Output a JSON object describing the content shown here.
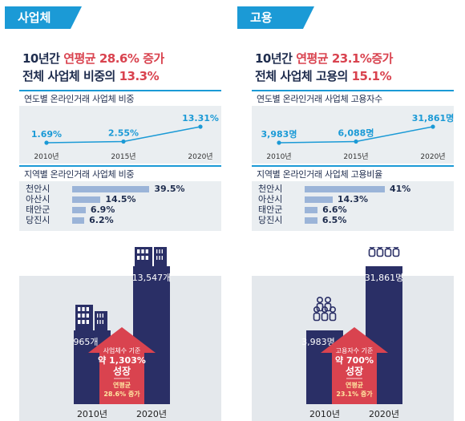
{
  "chart_data": [
    {
      "type": "line",
      "title": "연도별 온라인거래 사업체 비중",
      "categories": [
        "2010년",
        "2015년",
        "2020년"
      ],
      "values": [
        1.69,
        2.55,
        13.31
      ],
      "value_labels": [
        "1.69%",
        "2.55%",
        "13.31%"
      ],
      "color": "#1b9ad6"
    },
    {
      "type": "bar",
      "orientation": "horizontal",
      "title": "지역별 온라인거래 사업체 비중",
      "categories": [
        "천안시",
        "아산시",
        "태안군",
        "당진시"
      ],
      "values": [
        39.5,
        14.5,
        6.9,
        6.2
      ],
      "value_labels": [
        "39.5%",
        "14.5%",
        "6.9%",
        "6.2%"
      ],
      "color": "#9bb4d8"
    },
    {
      "type": "bar",
      "categories": [
        "2010년",
        "2020년"
      ],
      "values": [
        965,
        13547
      ],
      "value_labels": [
        "965개",
        "13,547개"
      ],
      "color": "#2a2f66"
    },
    {
      "type": "line",
      "title": "연도별 온라인거래 사업체 고용자수",
      "categories": [
        "2010년",
        "2015년",
        "2020년"
      ],
      "values": [
        3983,
        6088,
        31861
      ],
      "value_labels": [
        "3,983명",
        "6,088명",
        "31,861명"
      ],
      "color": "#1b9ad6"
    },
    {
      "type": "bar",
      "orientation": "horizontal",
      "title": "지역별 온라인거래 사업체 고용비율",
      "categories": [
        "천안시",
        "아산시",
        "태안군",
        "당진시"
      ],
      "values": [
        41,
        14.3,
        6.6,
        6.5
      ],
      "value_labels": [
        "41%",
        "14.3%",
        "6.6%",
        "6.5%"
      ],
      "color": "#9bb4d8"
    },
    {
      "type": "bar",
      "categories": [
        "2010년",
        "2020년"
      ],
      "values": [
        3983,
        31861
      ],
      "value_labels": [
        "3,983명",
        "31,861명"
      ],
      "color": "#2a2f66"
    }
  ],
  "panels": [
    {
      "tab": "사업체",
      "headline_line1_pre": "10년간 ",
      "headline_line1_hl": "연평균 28.6% 증가",
      "headline_line2_pre": "전체 사업체 비중의 ",
      "headline_line2_hl": "13.3%",
      "line_title": "연도별 온라인거래 사업체 비중",
      "bar_title": "지역별 온라인거래 사업체 비중",
      "arrow_line1": "사업체수 기준",
      "arrow_line2": "약 1,303%",
      "arrow_line3": "성장",
      "arrow_line4": "연평균",
      "arrow_line5": "28.6% 증가",
      "icon": "building"
    },
    {
      "tab": "고용",
      "headline_line1_pre": "10년간 ",
      "headline_line1_hl": "연평균 23.1%증가",
      "headline_line2_pre": "전체 사업체 고용의 ",
      "headline_line2_hl": "15.1%",
      "line_title": "연도별 온라인거래 사업체 고용자수",
      "bar_title": "지역별 온라인거래 사업체 고용비율",
      "arrow_line1": "고용자수 기준",
      "arrow_line2": "약 700%",
      "arrow_line3": "성장",
      "arrow_line4": "연평균",
      "arrow_line5": "23.1% 증가",
      "icon": "people"
    }
  ],
  "colors": {
    "accent": "#1b9ad6",
    "highlight": "#d9434f",
    "navy": "#2a2f66",
    "arrow": "#d9434f",
    "bar": "#9bb4d8"
  }
}
